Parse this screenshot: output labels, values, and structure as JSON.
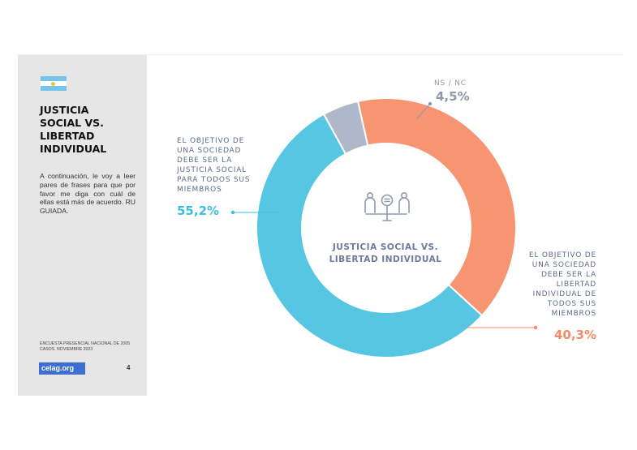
{
  "sidebar": {
    "title": "JUSTICIA\nSOCIAL VS.\nLIBERTAD\nINDIVIDUAL",
    "description": "A continuación, le voy a leer pares de frases para que por favor me diga con cuál de ellas está más de acuerdo. RU GUIADA.",
    "source": "ENCUESTA PRESENCIAL NACIONAL DE 2005 CASOS. NOVIEMBRE 2023",
    "logo": "celag.org",
    "page_number": "4",
    "flag_icon": "argentina-flag-icon"
  },
  "chart_data": {
    "type": "pie",
    "subtype": "donut",
    "center_label": "JUSTICIA SOCIAL VS.\nLIBERTAD INDIVIDUAL",
    "center_icon": "scale-people-icon",
    "slices": [
      {
        "label": "NS / NC",
        "value": 4.5,
        "display": "4,5%",
        "color": "#adb9cb"
      },
      {
        "label": "EL OBJETIVO DE\nUNA SOCIEDAD\nDEBE SER LA\nLIBERTAD\nINDIVIDUAL DE\nTODOS SUS\nMIEMBROS",
        "value": 40.3,
        "display": "40,3%",
        "color": "#f79472"
      },
      {
        "label": "EL OBJETIVO DE\nUNA SOCIEDAD\nDEBE SER LA\nJUSTICIA SOCIAL\nPARA TODOS SUS\nMIEMBROS",
        "value": 55.2,
        "display": "55,2%",
        "color": "#56c6e3"
      }
    ]
  }
}
